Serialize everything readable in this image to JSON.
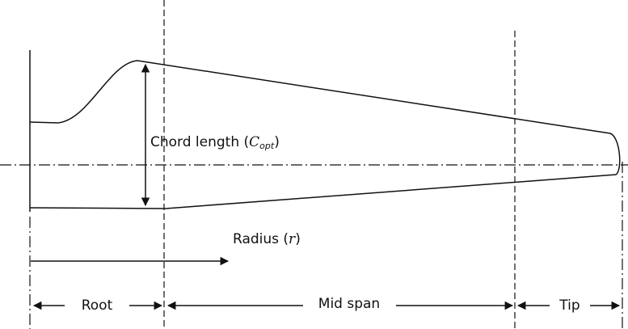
{
  "labels": {
    "chord": {
      "prefix": "Chord length (",
      "symbol": "C",
      "subscript": "opt",
      "suffix": ")"
    },
    "radius": {
      "prefix": "Radius (",
      "symbol": "r",
      "suffix": ")"
    },
    "sections": [
      "Root",
      "Mid span",
      "Tip"
    ]
  }
}
